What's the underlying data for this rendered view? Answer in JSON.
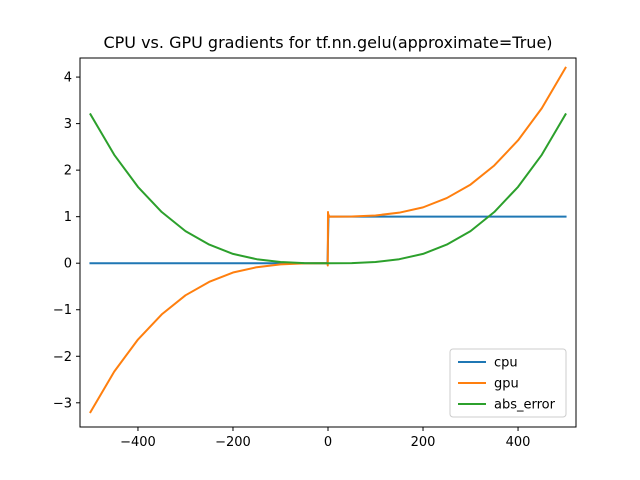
{
  "chart_data": {
    "type": "line",
    "title": "CPU vs. GPU gradients for tf.nn.gelu(approximate=True)",
    "xlabel": "",
    "ylabel": "",
    "xlim": [
      -522,
      522
    ],
    "ylim": [
      -3.52,
      4.41
    ],
    "x_ticks": [
      -400,
      -200,
      0,
      200,
      400
    ],
    "y_ticks": [
      -3,
      -2,
      -1,
      0,
      1,
      2,
      3,
      4
    ],
    "x_tick_labels": [
      "−400",
      "−200",
      "0",
      "200",
      "400"
    ],
    "y_tick_labels": [
      "−3",
      "−2",
      "−1",
      "0",
      "1",
      "2",
      "3",
      "4"
    ],
    "grid": false,
    "legend_position": "lower-right",
    "series": [
      {
        "name": "cpu",
        "color": "#1f77b4",
        "points": [
          [
            -500,
            0
          ],
          [
            -300,
            0
          ],
          [
            -100,
            0
          ],
          [
            -10,
            0
          ],
          [
            -1,
            0
          ],
          [
            0,
            0.5
          ],
          [
            1,
            1
          ],
          [
            10,
            1
          ],
          [
            100,
            1
          ],
          [
            300,
            1
          ],
          [
            500,
            1
          ]
        ]
      },
      {
        "name": "gpu",
        "color": "#ff7f0e",
        "points": [
          [
            -500,
            -3.2
          ],
          [
            -450,
            -2.33
          ],
          [
            -400,
            -1.64
          ],
          [
            -350,
            -1.1
          ],
          [
            -300,
            -0.69
          ],
          [
            -250,
            -0.4
          ],
          [
            -200,
            -0.2
          ],
          [
            -150,
            -0.086
          ],
          [
            -100,
            -0.026
          ],
          [
            -50,
            -0.003
          ],
          [
            -10,
            0
          ],
          [
            -1,
            0
          ],
          [
            -0.5,
            -0.05
          ],
          [
            0,
            1.1
          ],
          [
            0.5,
            0.95
          ],
          [
            1,
            1.05
          ],
          [
            1.5,
            0.98
          ],
          [
            2,
            1.02
          ],
          [
            3,
            1
          ],
          [
            10,
            1
          ],
          [
            50,
            1.003
          ],
          [
            100,
            1.026
          ],
          [
            150,
            1.086
          ],
          [
            200,
            1.2
          ],
          [
            250,
            1.4
          ],
          [
            300,
            1.69
          ],
          [
            350,
            2.1
          ],
          [
            400,
            2.64
          ],
          [
            450,
            3.33
          ],
          [
            500,
            4.2
          ]
        ]
      },
      {
        "name": "abs_error",
        "color": "#2ca02c",
        "points": [
          [
            -500,
            3.2
          ],
          [
            -450,
            2.33
          ],
          [
            -400,
            1.64
          ],
          [
            -350,
            1.1
          ],
          [
            -300,
            0.69
          ],
          [
            -250,
            0.4
          ],
          [
            -200,
            0.2
          ],
          [
            -150,
            0.086
          ],
          [
            -100,
            0.026
          ],
          [
            -50,
            0.003
          ],
          [
            0,
            0
          ],
          [
            50,
            0.003
          ],
          [
            100,
            0.026
          ],
          [
            150,
            0.086
          ],
          [
            200,
            0.2
          ],
          [
            250,
            0.4
          ],
          [
            300,
            0.69
          ],
          [
            350,
            1.1
          ],
          [
            400,
            1.64
          ],
          [
            450,
            2.33
          ],
          [
            500,
            3.2
          ]
        ]
      }
    ]
  }
}
